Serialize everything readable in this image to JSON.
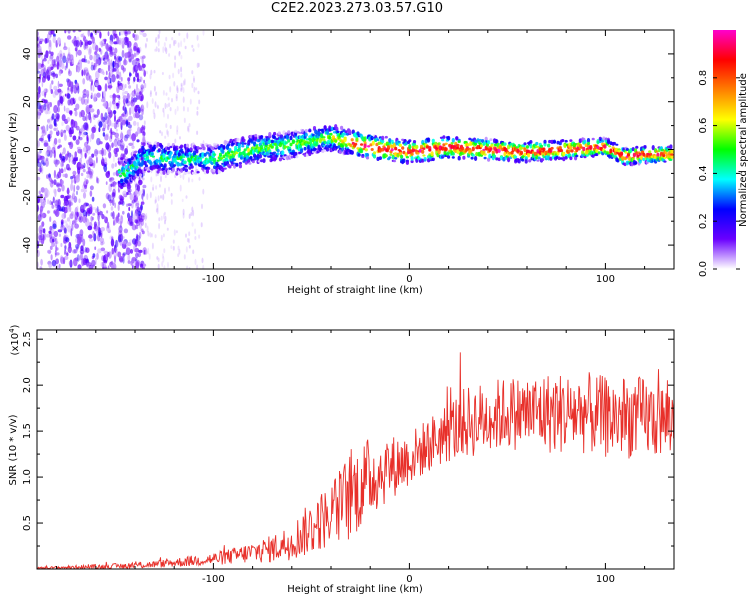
{
  "chart_data": [
    {
      "type": "heatmap",
      "title": "C2E2.2023.273.03.57.G10",
      "xlabel": "Height of straight line (km)",
      "ylabel": "Frequency (Hz)",
      "xlim": [
        -190,
        135
      ],
      "ylim": [
        -50,
        50
      ],
      "xticks": [
        -100,
        0,
        100
      ],
      "yticks": [
        -40,
        -20,
        0,
        20,
        40
      ],
      "colorbar": {
        "label": "Normalized spectral amplitude",
        "range": [
          0,
          1
        ],
        "ticks": [
          "0.0",
          "0.2",
          "0.4",
          "0.6",
          "0.8"
        ],
        "colormap": [
          "#ffffff",
          "#6a00ff",
          "#0000ff",
          "#00ffff",
          "#00ff00",
          "#ffff00",
          "#ff7f00",
          "#ff0000",
          "#ff00cc"
        ]
      },
      "ridge": {
        "x": [
          -145,
          -135,
          -120,
          -100,
          -80,
          -60,
          -40,
          -30,
          -20,
          -10,
          0,
          10,
          20,
          40,
          60,
          80,
          100,
          110,
          120,
          135
        ],
        "y": [
          -10,
          -3,
          -4,
          -4,
          0,
          2,
          5,
          3,
          1,
          0,
          -1,
          0,
          1,
          0,
          -1,
          0,
          1,
          -3,
          -2,
          -2
        ]
      }
    },
    {
      "type": "line",
      "xlabel": "Height of straight line (km)",
      "ylabel": "SNR (10 * v/v)",
      "y_multiplier": "(x10",
      "y_multiplier_exp": "4",
      "y_multiplier_close": ")",
      "xlim": [
        -190,
        135
      ],
      "ylim": [
        0,
        2.6
      ],
      "xticks": [
        -100,
        0,
        100
      ],
      "yticks": [
        "0.5",
        "1.0",
        "1.5",
        "2.0",
        "2.5"
      ],
      "ytick_values": [
        0.5,
        1.0,
        1.5,
        2.0,
        2.5
      ],
      "series": [
        {
          "color": "#e8302a",
          "x": [
            -190,
            -170,
            -150,
            -130,
            -120,
            -110,
            -100,
            -90,
            -80,
            -70,
            -60,
            -50,
            -40,
            -30,
            -20,
            -10,
            0,
            10,
            20,
            30,
            40,
            50,
            60,
            70,
            80,
            90,
            100,
            110,
            120,
            135
          ],
          "mean": [
            0.01,
            0.02,
            0.03,
            0.05,
            0.07,
            0.09,
            0.11,
            0.14,
            0.18,
            0.22,
            0.3,
            0.45,
            0.6,
            0.8,
            1.0,
            1.1,
            1.2,
            1.35,
            1.5,
            1.6,
            1.65,
            1.7,
            1.7,
            1.7,
            1.7,
            1.7,
            1.65,
            1.65,
            1.65,
            1.6
          ],
          "spread": [
            0.01,
            0.02,
            0.03,
            0.04,
            0.05,
            0.06,
            0.07,
            0.09,
            0.12,
            0.15,
            0.2,
            0.3,
            0.35,
            0.5,
            0.45,
            0.35,
            0.3,
            0.3,
            0.35,
            0.4,
            0.4,
            0.4,
            0.42,
            0.45,
            0.45,
            0.45,
            0.45,
            0.45,
            0.45,
            0.4
          ]
        }
      ]
    }
  ]
}
